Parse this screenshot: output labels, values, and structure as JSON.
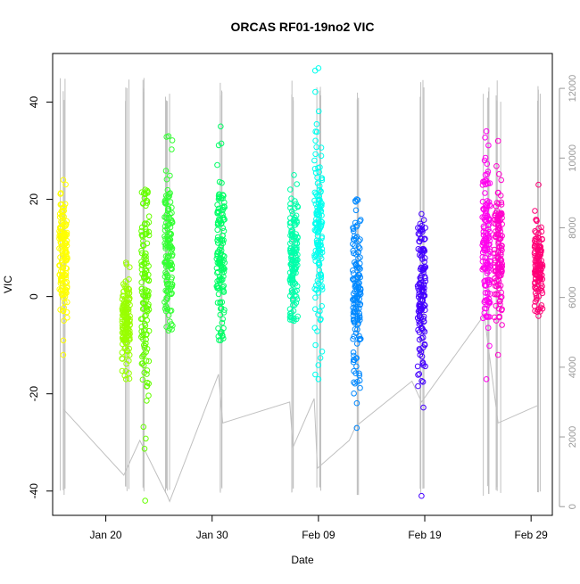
{
  "chart_data": {
    "type": "scatter",
    "title": "ORCAS RF01-19no2 VIC",
    "xlabel": "Date",
    "ylabel": "VIC",
    "x_range": [
      "2016-01-15",
      "2016-03-02"
    ],
    "y_range": [
      -45,
      50
    ],
    "y2_range": [
      -250,
      13000
    ],
    "grid": false,
    "legend": "none",
    "x_ticks": [
      {
        "date": "2016-01-20",
        "label": "Jan 20"
      },
      {
        "date": "2016-01-30",
        "label": "Jan 30"
      },
      {
        "date": "2016-02-09",
        "label": "Feb 09"
      },
      {
        "date": "2016-02-19",
        "label": "Feb 19"
      },
      {
        "date": "2016-02-29",
        "label": "Feb 29"
      }
    ],
    "y_ticks": [
      {
        "value": -40,
        "label": "-40"
      },
      {
        "value": -20,
        "label": "-20"
      },
      {
        "value": 0,
        "label": "0"
      },
      {
        "value": 20,
        "label": "20"
      },
      {
        "value": 40,
        "label": "40"
      }
    ],
    "y2_ticks": [
      {
        "value": 0,
        "label": "0"
      },
      {
        "value": 2000,
        "label": "2000"
      },
      {
        "value": 4000,
        "label": "4000"
      },
      {
        "value": 6000,
        "label": "6000"
      },
      {
        "value": 8000,
        "label": "8000"
      },
      {
        "value": 10000,
        "label": "10000"
      },
      {
        "value": 12000,
        "label": "12000"
      }
    ],
    "flights": [
      {
        "date": "2016-01-16.0",
        "color": "#ffff00",
        "center": 9,
        "spread": 7,
        "min": -12,
        "max": 24
      },
      {
        "date": "2016-01-21.9",
        "color": "#99ff00",
        "center": -5,
        "spread": 5,
        "min": -17,
        "max": 7
      },
      {
        "date": "2016-01-23.7",
        "color": "#66ff00",
        "center": 1,
        "spread": 12,
        "min": -42,
        "max": 22
      },
      {
        "date": "2016-01-25.9",
        "color": "#33ff33",
        "center": 10,
        "spread": 8,
        "min": -7,
        "max": 33
      },
      {
        "date": "2016-01-30.8",
        "color": "#00ff66",
        "center": 10,
        "spread": 10,
        "min": -9,
        "max": 35
      },
      {
        "date": "2016-02-06.7",
        "color": "#00ffaa",
        "center": 8,
        "spread": 7,
        "min": -5,
        "max": 25
      },
      {
        "date": "2016-02-09.0",
        "color": "#00ffee",
        "center": 13,
        "spread": 11,
        "min": -17,
        "max": 47
      },
      {
        "date": "2016-02-12.6",
        "color": "#0088ff",
        "center": 1,
        "spread": 9,
        "min": -27,
        "max": 20
      },
      {
        "date": "2016-02-18.7",
        "color": "#4400ff",
        "center": 0,
        "spread": 9,
        "min": -41,
        "max": 17
      },
      {
        "date": "2016-02-24.8",
        "color": "#ff00ee",
        "center": 12,
        "spread": 10,
        "min": -17,
        "max": 34
      },
      {
        "date": "2016-02-25.9",
        "color": "#ff00cc",
        "center": 10,
        "spread": 7,
        "min": -12,
        "max": 32
      },
      {
        "date": "2016-02-29.7",
        "color": "#ff0077",
        "center": 6,
        "spread": 5,
        "min": -4,
        "max": 23
      }
    ],
    "altitude_trace": [
      {
        "date": "2016-01-16.0",
        "y2": 2800
      },
      {
        "date": "2016-01-21.7",
        "y2": 900
      },
      {
        "date": "2016-01-23.2",
        "y2": 1900
      },
      {
        "date": "2016-01-25.8",
        "y2": 300
      },
      {
        "date": "2016-01-26.0",
        "y2": 150
      },
      {
        "date": "2016-01-30.6",
        "y2": 3800
      },
      {
        "date": "2016-01-31.0",
        "y2": 2400
      },
      {
        "date": "2016-02-06.3",
        "y2": 3000
      },
      {
        "date": "2016-02-06.6",
        "y2": 1700
      },
      {
        "date": "2016-02-08.6",
        "y2": 3100
      },
      {
        "date": "2016-02-08.9",
        "y2": 1100
      },
      {
        "date": "2016-02-11.9",
        "y2": 1900
      },
      {
        "date": "2016-02-12.5",
        "y2": 2300
      },
      {
        "date": "2016-02-17.8",
        "y2": 3600
      },
      {
        "date": "2016-02-18.7",
        "y2": 3000
      },
      {
        "date": "2016-02-24.6",
        "y2": 5500
      },
      {
        "date": "2016-02-25.9",
        "y2": 2400
      },
      {
        "date": "2016-02-29.6",
        "y2": 2900
      }
    ]
  }
}
